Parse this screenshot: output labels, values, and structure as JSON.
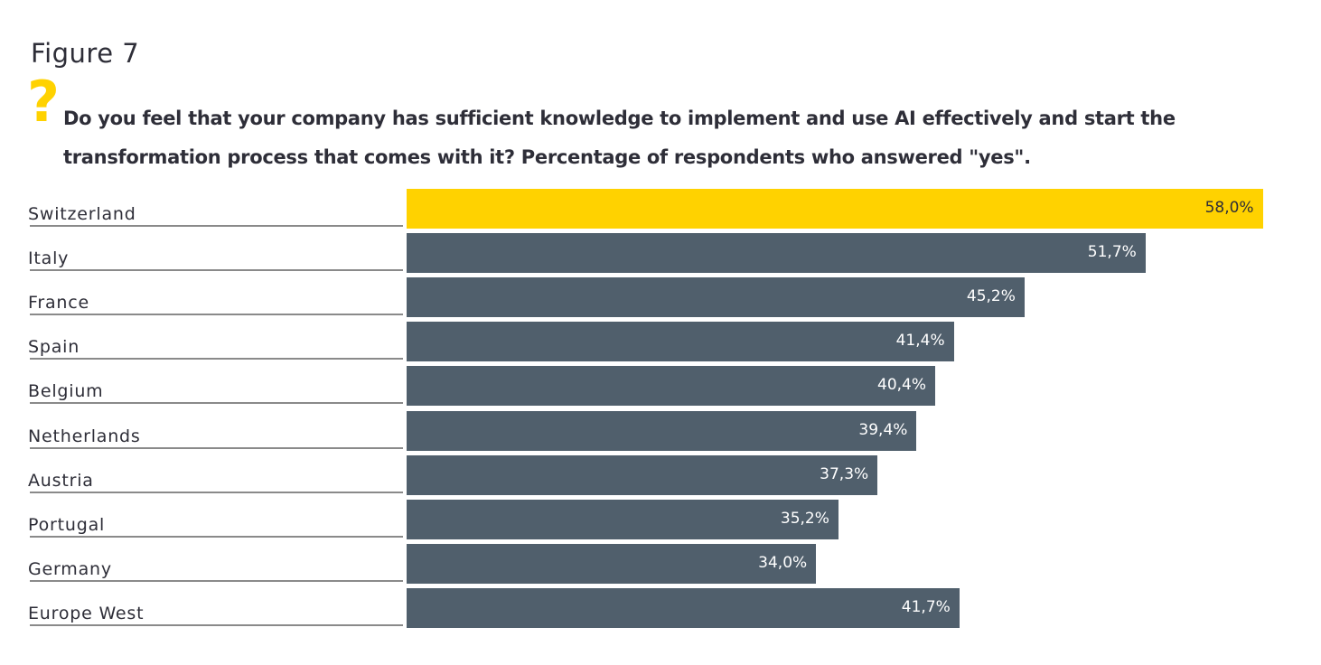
{
  "figure_label": "Figure 7",
  "question_icon": "question-mark-icon",
  "colors": {
    "highlight": "#ffd200",
    "bar": "#505f6c",
    "highlight_text": "#2e2e38",
    "bar_text": "#ffffff"
  },
  "chart_data": {
    "type": "bar",
    "orientation": "horizontal",
    "title": "Do you feel that your company has sufficient knowledge to implement and use AI effectively and start the transformation process that comes with it? Percentage of respondents who answered \"yes\".",
    "categories": [
      "Switzerland",
      "Italy",
      "France",
      "Spain",
      "Belgium",
      "Netherlands",
      "Austria",
      "Portugal",
      "Germany",
      "Europe West"
    ],
    "values": [
      58.0,
      51.7,
      45.2,
      41.4,
      40.4,
      39.4,
      37.3,
      35.2,
      34.0,
      41.7
    ],
    "value_labels": [
      "58,0%",
      "51,7%",
      "45,2%",
      "41,4%",
      "40,4%",
      "39,4%",
      "37,3%",
      "35,2%",
      "34,0%",
      "41,7%"
    ],
    "highlight": "Switzerland",
    "xlim": [
      12,
      58
    ],
    "xlabel": "",
    "ylabel": "",
    "grid": false
  }
}
